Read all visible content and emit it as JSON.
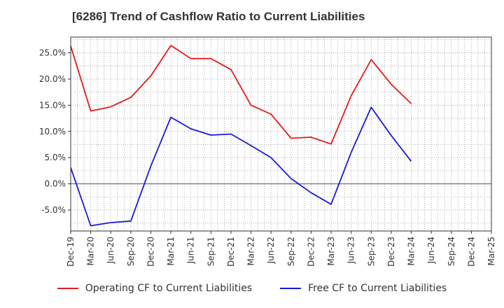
{
  "chart_data": {
    "type": "line",
    "title": "[6286]  Trend of Cashflow Ratio to Current Liabilities",
    "xlabel": "",
    "ylabel": "",
    "x": [
      "Dec-19",
      "Mar-20",
      "Jun-20",
      "Sep-20",
      "Dec-20",
      "Mar-21",
      "Jun-21",
      "Sep-21",
      "Dec-21",
      "Mar-22",
      "Jun-22",
      "Sep-22",
      "Dec-22",
      "Mar-23",
      "Jun-23",
      "Sep-23",
      "Dec-23",
      "Mar-24",
      "Jun-24",
      "Sep-24",
      "Dec-24",
      "Mar-25"
    ],
    "ylim": [
      -9,
      28
    ],
    "yticks": [
      -5,
      0,
      5,
      10,
      15,
      20,
      25
    ],
    "ytick_labels": [
      "-5.0%",
      "0.0%",
      "5.0%",
      "10.0%",
      "15.0%",
      "20.0%",
      "25.0%"
    ],
    "grid": true,
    "legend_position": "bottom",
    "series": [
      {
        "name": "Operating CF to Current Liabilities",
        "color": "#e41a1c",
        "values": [
          26.3,
          13.9,
          14.7,
          16.5,
          20.6,
          26.4,
          23.9,
          23.9,
          21.8,
          15.0,
          13.3,
          8.7,
          8.9,
          7.6,
          16.8,
          23.7,
          19.0,
          15.3,
          null,
          null,
          null,
          null
        ]
      },
      {
        "name": "Free CF to Current Liabilities",
        "color": "#1a1adc",
        "values": [
          3.1,
          -8.0,
          -7.4,
          -7.1,
          3.4,
          12.7,
          10.5,
          9.3,
          9.5,
          7.3,
          5.0,
          1.0,
          -1.7,
          -3.9,
          6.0,
          14.6,
          9.2,
          4.3,
          null,
          null,
          null,
          null
        ]
      }
    ]
  }
}
